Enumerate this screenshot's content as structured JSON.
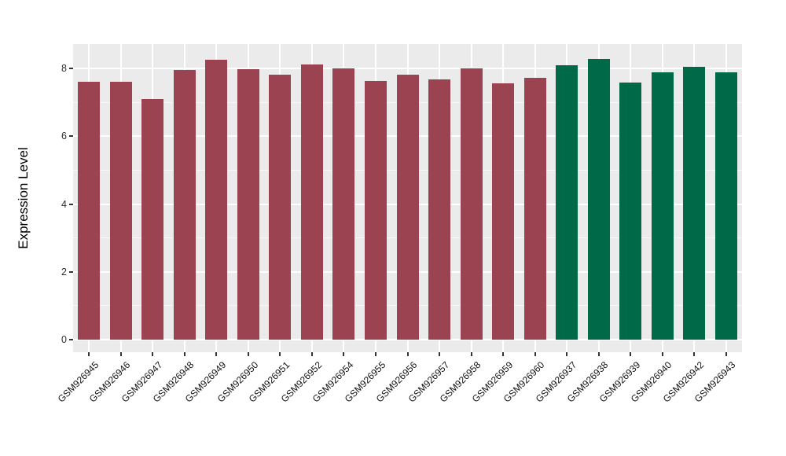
{
  "chart_data": {
    "type": "bar",
    "title": "",
    "xlabel": "",
    "ylabel": "Expression Level",
    "yticks": [
      0,
      2,
      4,
      6,
      8
    ],
    "ylim": [
      -0.41,
      8.72
    ],
    "grid": true,
    "legend_position": "none",
    "panel_background": "#EBEBEB",
    "gridline_color": "#FFFFFF",
    "group_colors": {
      "group1": "#9C4351",
      "group2": "#006948"
    },
    "bars": [
      {
        "label": "GSM926945",
        "value": 7.62,
        "group": "group1"
      },
      {
        "label": "GSM926946",
        "value": 7.61,
        "group": "group1"
      },
      {
        "label": "GSM926947",
        "value": 7.11,
        "group": "group1"
      },
      {
        "label": "GSM926948",
        "value": 7.96,
        "group": "group1"
      },
      {
        "label": "GSM926949",
        "value": 8.27,
        "group": "group1"
      },
      {
        "label": "GSM926950",
        "value": 7.97,
        "group": "group1"
      },
      {
        "label": "GSM926951",
        "value": 7.82,
        "group": "group1"
      },
      {
        "label": "GSM926952",
        "value": 8.12,
        "group": "group1"
      },
      {
        "label": "GSM926954",
        "value": 8.0,
        "group": "group1"
      },
      {
        "label": "GSM926955",
        "value": 7.64,
        "group": "group1"
      },
      {
        "label": "GSM926956",
        "value": 7.81,
        "group": "group1"
      },
      {
        "label": "GSM926957",
        "value": 7.69,
        "group": "group1"
      },
      {
        "label": "GSM926958",
        "value": 8.01,
        "group": "group1"
      },
      {
        "label": "GSM926959",
        "value": 7.57,
        "group": "group1"
      },
      {
        "label": "GSM926960",
        "value": 7.73,
        "group": "group1"
      },
      {
        "label": "GSM926937",
        "value": 8.1,
        "group": "group2"
      },
      {
        "label": "GSM926938",
        "value": 8.29,
        "group": "group2"
      },
      {
        "label": "GSM926939",
        "value": 7.58,
        "group": "group2"
      },
      {
        "label": "GSM926940",
        "value": 7.9,
        "group": "group2"
      },
      {
        "label": "GSM926942",
        "value": 8.05,
        "group": "group2"
      },
      {
        "label": "GSM926943",
        "value": 7.89,
        "group": "group2"
      }
    ]
  }
}
